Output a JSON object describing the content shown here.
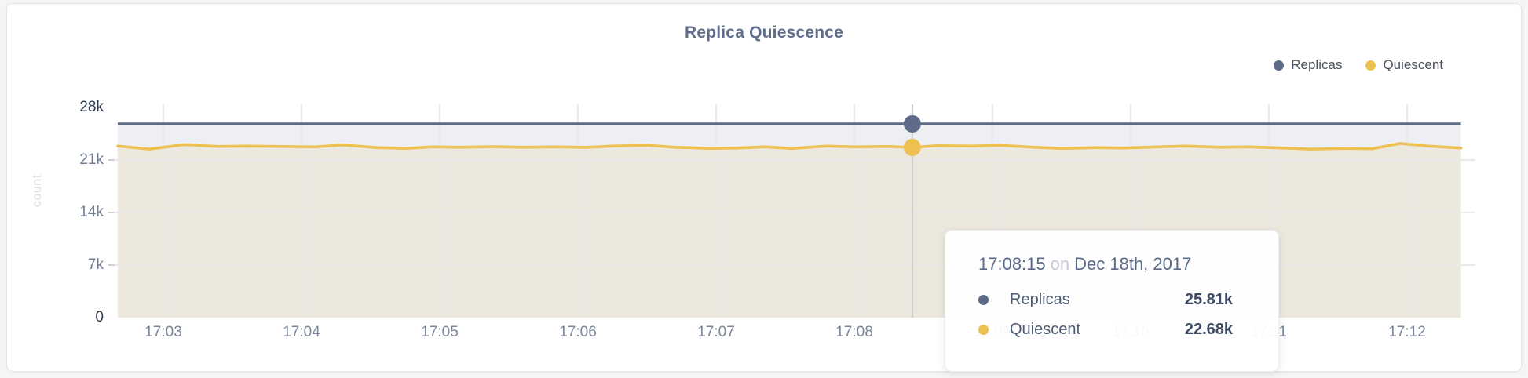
{
  "card": {
    "title": "Replica Quiescence"
  },
  "legend": [
    {
      "label": "Replicas",
      "color": "#5d6b89"
    },
    {
      "label": "Quiescent",
      "color": "#eec04f"
    }
  ],
  "tooltip": {
    "time": "17:08:15",
    "connector": "on",
    "date": "Dec 18th, 2017",
    "rows": [
      {
        "label": "Replicas",
        "value": "25.81k",
        "color": "#5d6b89"
      },
      {
        "label": "Quiescent",
        "value": "22.68k",
        "color": "#eec04f"
      }
    ]
  },
  "chart_data": {
    "type": "area",
    "title": "Replica Quiescence",
    "xlabel": "",
    "ylabel": "count",
    "ylim": [
      0,
      28000
    ],
    "unit": "count (k = thousands)",
    "grid": true,
    "legend_position": "top-right",
    "yticks": [
      {
        "label": "28k",
        "v": 28,
        "strong": true,
        "gridline": false
      },
      {
        "label": "21k",
        "v": 21,
        "strong": false,
        "gridline": true
      },
      {
        "label": "14k",
        "v": 14,
        "strong": false,
        "gridline": true
      },
      {
        "label": "7k",
        "v": 7,
        "strong": false,
        "gridline": true
      },
      {
        "label": "0",
        "v": 0,
        "strong": true,
        "gridline": false
      }
    ],
    "xticks": [
      {
        "label": "17:03",
        "min": 3
      },
      {
        "label": "17:04",
        "min": 4
      },
      {
        "label": "17:05",
        "min": 5
      },
      {
        "label": "17:06",
        "min": 6
      },
      {
        "label": "17:07",
        "min": 7
      },
      {
        "label": "17:08",
        "min": 8
      },
      {
        "label": "17:09",
        "min": 9
      },
      {
        "label": "17:10",
        "min": 10
      },
      {
        "label": "17:11",
        "min": 11
      },
      {
        "label": "17:12",
        "min": 12
      }
    ],
    "x_minutes": [
      2.67,
      2.9,
      3.15,
      3.4,
      3.6,
      3.85,
      4.1,
      4.3,
      4.55,
      4.75,
      4.95,
      5.15,
      5.4,
      5.6,
      5.85,
      6.05,
      6.25,
      6.5,
      6.7,
      6.95,
      7.15,
      7.35,
      7.55,
      7.8,
      8.0,
      8.25,
      8.42,
      8.6,
      8.85,
      9.05,
      9.3,
      9.5,
      9.75,
      9.95,
      10.2,
      10.4,
      10.65,
      10.85,
      11.1,
      11.3,
      11.55,
      11.75,
      11.95,
      12.15,
      12.39
    ],
    "series": [
      {
        "name": "Replicas",
        "color": "#5d6b89",
        "fill": "#edeff2",
        "values_k": [
          25.81,
          25.81,
          25.81,
          25.81,
          25.81,
          25.81,
          25.81,
          25.81,
          25.81,
          25.81,
          25.81,
          25.81,
          25.81,
          25.81,
          25.81,
          25.81,
          25.81,
          25.81,
          25.81,
          25.81,
          25.81,
          25.81,
          25.81,
          25.81,
          25.81,
          25.81,
          25.81,
          25.81,
          25.81,
          25.81,
          25.81,
          25.81,
          25.81,
          25.81,
          25.81,
          25.81,
          25.81,
          25.81,
          25.81,
          25.81,
          25.81,
          25.81,
          25.81,
          25.81,
          25.81
        ]
      },
      {
        "name": "Quiescent",
        "color": "#eec04f",
        "fill": "#ece8de",
        "values_k": [
          22.85,
          22.45,
          23.05,
          22.8,
          22.85,
          22.8,
          22.75,
          23.0,
          22.65,
          22.55,
          22.75,
          22.7,
          22.78,
          22.7,
          22.75,
          22.68,
          22.85,
          22.95,
          22.7,
          22.55,
          22.6,
          22.75,
          22.55,
          22.85,
          22.75,
          22.8,
          22.68,
          22.9,
          22.85,
          22.95,
          22.7,
          22.55,
          22.65,
          22.6,
          22.75,
          22.85,
          22.7,
          22.75,
          22.6,
          22.45,
          22.55,
          22.5,
          23.2,
          22.85,
          22.6
        ]
      }
    ],
    "hover": {
      "time": "17:08:15",
      "date": "Dec 18th, 2017",
      "x_min": 8.42,
      "replicas_k": 25.81,
      "quiescent_k": 22.68,
      "crosshair_color": "#c9cacb"
    }
  }
}
